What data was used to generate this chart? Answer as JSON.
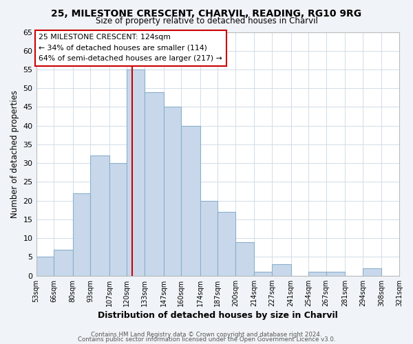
{
  "title": "25, MILESTONE CRESCENT, CHARVIL, READING, RG10 9RG",
  "subtitle": "Size of property relative to detached houses in Charvil",
  "xlabel": "Distribution of detached houses by size in Charvil",
  "ylabel": "Number of detached properties",
  "bar_edges": [
    53,
    66,
    80,
    93,
    107,
    120,
    133,
    147,
    160,
    174,
    187,
    200,
    214,
    227,
    241,
    254,
    267,
    281,
    294,
    308,
    321
  ],
  "bar_heights": [
    5,
    7,
    22,
    32,
    30,
    55,
    49,
    45,
    40,
    20,
    17,
    9,
    1,
    3,
    0,
    1,
    1,
    0,
    2,
    0
  ],
  "bar_color": "#c8d8ea",
  "bar_edgecolor": "#8ab0cc",
  "vline_x": 124,
  "vline_color": "#cc0000",
  "annotation_lines": [
    "25 MILESTONE CRESCENT: 124sqm",
    "← 34% of detached houses are smaller (114)",
    "64% of semi-detached houses are larger (217) →"
  ],
  "xlim": [
    53,
    321
  ],
  "ylim": [
    0,
    65
  ],
  "yticks": [
    0,
    5,
    10,
    15,
    20,
    25,
    30,
    35,
    40,
    45,
    50,
    55,
    60,
    65
  ],
  "xtick_labels": [
    "53sqm",
    "66sqm",
    "80sqm",
    "93sqm",
    "107sqm",
    "120sqm",
    "133sqm",
    "147sqm",
    "160sqm",
    "174sqm",
    "187sqm",
    "200sqm",
    "214sqm",
    "227sqm",
    "241sqm",
    "254sqm",
    "267sqm",
    "281sqm",
    "294sqm",
    "308sqm",
    "321sqm"
  ],
  "footer1": "Contains HM Land Registry data © Crown copyright and database right 2024.",
  "footer2": "Contains public sector information licensed under the Open Government Licence v3.0.",
  "background_color": "#f0f4f8",
  "plot_bg_color": "#ffffff",
  "grid_color": "#d0dce8"
}
